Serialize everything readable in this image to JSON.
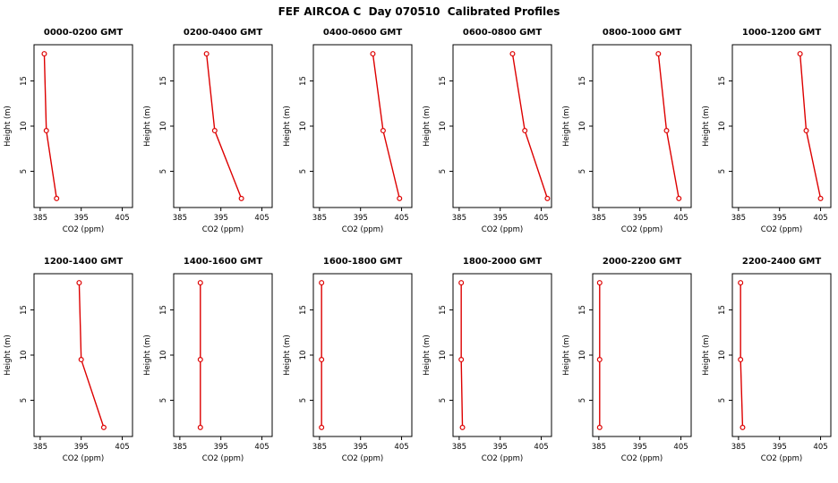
{
  "title": "FEF AIRCOA C  Day 070510  Calibrated Profiles",
  "chart_data": {
    "type": "line",
    "xlabel": "CO2 (ppm)",
    "ylabel": "Height (m)",
    "xticks": [
      385,
      395,
      405
    ],
    "yticks": [
      5,
      10,
      15
    ],
    "xlim": [
      383.5,
      407.5
    ],
    "ylim": [
      1,
      19
    ],
    "grid": false,
    "legend": "none",
    "line_color": "#dd0000",
    "marker": "open-circle",
    "heights": [
      2,
      9.5,
      18
    ],
    "panels": [
      {
        "title": "0000-0200 GMT",
        "co2": [
          389.0,
          386.5,
          386.0
        ]
      },
      {
        "title": "0200-0400 GMT",
        "co2": [
          400.0,
          393.5,
          391.5
        ]
      },
      {
        "title": "0400-0600 GMT",
        "co2": [
          404.5,
          400.5,
          398.0
        ]
      },
      {
        "title": "0600-0800 GMT",
        "co2": [
          406.5,
          401.0,
          398.0
        ]
      },
      {
        "title": "0800-1000 GMT",
        "co2": [
          404.5,
          401.5,
          399.5
        ]
      },
      {
        "title": "1000-1200 GMT",
        "co2": [
          405.0,
          401.5,
          400.0
        ]
      },
      {
        "title": "1200-1400 GMT",
        "co2": [
          400.5,
          395.0,
          394.5
        ]
      },
      {
        "title": "1400-1600 GMT",
        "co2": [
          390.0,
          390.0,
          390.0
        ]
      },
      {
        "title": "1600-1800 GMT",
        "co2": [
          385.5,
          385.5,
          385.5
        ]
      },
      {
        "title": "1800-2000 GMT",
        "co2": [
          385.8,
          385.5,
          385.5
        ]
      },
      {
        "title": "2000-2200 GMT",
        "co2": [
          385.2,
          385.2,
          385.2
        ]
      },
      {
        "title": "2200-2400 GMT",
        "co2": [
          386.0,
          385.5,
          385.5
        ]
      }
    ]
  }
}
